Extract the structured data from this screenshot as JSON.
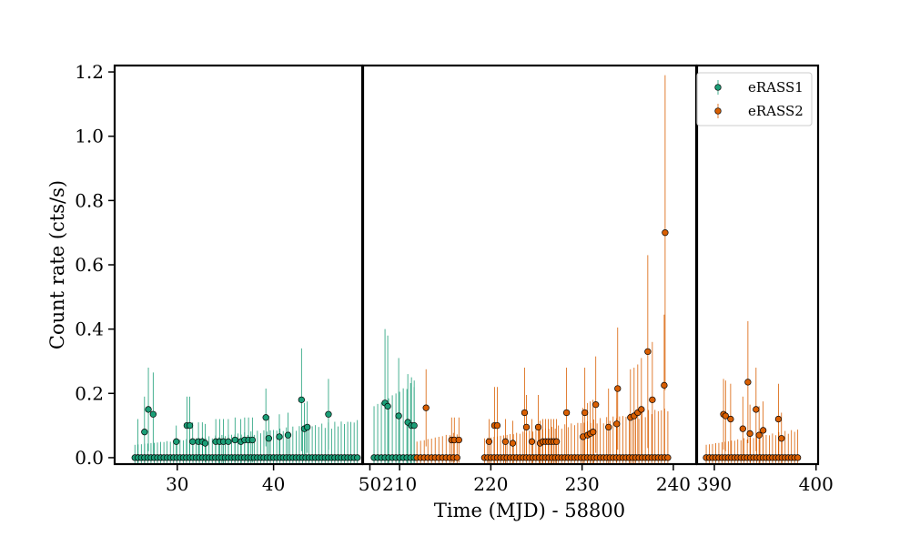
{
  "chart_data": {
    "type": "scatter",
    "title": "",
    "xlabel": "Time (MJD) - 58800",
    "ylabel": "Count rate (cts/s)",
    "ylim": [
      -0.02,
      1.22
    ],
    "yticks": [
      0.0,
      0.2,
      0.4,
      0.6,
      0.8,
      1.0,
      1.2
    ],
    "ytick_labels": [
      "0.0",
      "0.2",
      "0.4",
      "0.6",
      "0.8",
      "1.0",
      "1.2"
    ],
    "error_bars": true,
    "colors": {
      "eRASS1": "#1b9e77",
      "eRASS2": "#d95f02"
    },
    "legend": {
      "placement": "top-right",
      "entries": [
        "eRASS1",
        "eRASS2"
      ]
    },
    "panels": [
      {
        "xlim": [
          23.5,
          49.2
        ],
        "xticks": [
          30,
          40,
          50
        ],
        "xtick_labels": [
          "30",
          "40",
          "50"
        ]
      },
      {
        "xlim": [
          206,
          242.5
        ],
        "xticks": [
          210,
          220,
          230,
          240
        ],
        "xtick_labels": [
          "210",
          "220",
          "230",
          "240"
        ]
      },
      {
        "xlim": [
          388.3,
          400.2
        ],
        "xticks": [
          390,
          400
        ],
        "xtick_labels": [
          "390",
          "400"
        ]
      }
    ],
    "series": [
      {
        "name": "eRASS1",
        "points": [
          {
            "x": 25.9,
            "y": 0.0,
            "err": 0.12
          },
          {
            "x": 26.6,
            "y": 0.08,
            "err": 0.11
          },
          {
            "x": 27.0,
            "y": 0.15,
            "err": 0.13
          },
          {
            "x": 27.5,
            "y": 0.135,
            "err": 0.13
          },
          {
            "x": 29.9,
            "y": 0.05,
            "err": 0.05
          },
          {
            "x": 31.0,
            "y": 0.1,
            "err": 0.09
          },
          {
            "x": 31.3,
            "y": 0.1,
            "err": 0.09
          },
          {
            "x": 31.6,
            "y": 0.05,
            "err": 0.06
          },
          {
            "x": 32.2,
            "y": 0.05,
            "err": 0.06
          },
          {
            "x": 32.6,
            "y": 0.05,
            "err": 0.06
          },
          {
            "x": 32.9,
            "y": 0.045,
            "err": 0.06
          },
          {
            "x": 34.0,
            "y": 0.05,
            "err": 0.07
          },
          {
            "x": 34.4,
            "y": 0.05,
            "err": 0.07
          },
          {
            "x": 34.8,
            "y": 0.05,
            "err": 0.07
          },
          {
            "x": 35.3,
            "y": 0.05,
            "err": 0.07
          },
          {
            "x": 36.0,
            "y": 0.055,
            "err": 0.07
          },
          {
            "x": 36.6,
            "y": 0.05,
            "err": 0.07
          },
          {
            "x": 37.0,
            "y": 0.055,
            "err": 0.07
          },
          {
            "x": 37.4,
            "y": 0.055,
            "err": 0.07
          },
          {
            "x": 37.8,
            "y": 0.055,
            "err": 0.07
          },
          {
            "x": 39.2,
            "y": 0.125,
            "err": 0.09
          },
          {
            "x": 39.5,
            "y": 0.06,
            "err": 0.07
          },
          {
            "x": 40.6,
            "y": 0.065,
            "err": 0.07
          },
          {
            "x": 41.5,
            "y": 0.07,
            "err": 0.07
          },
          {
            "x": 42.9,
            "y": 0.18,
            "err": 0.16
          },
          {
            "x": 43.2,
            "y": 0.09,
            "err": 0.08
          },
          {
            "x": 43.5,
            "y": 0.095,
            "err": 0.08
          },
          {
            "x": 45.7,
            "y": 0.135,
            "err": 0.11
          },
          {
            "x": 208.4,
            "y": 0.17,
            "err": 0.23
          },
          {
            "x": 208.7,
            "y": 0.16,
            "err": 0.22
          },
          {
            "x": 209.9,
            "y": 0.13,
            "err": 0.18
          },
          {
            "x": 210.9,
            "y": 0.11,
            "err": 0.15
          },
          {
            "x": 211.3,
            "y": 0.1,
            "err": 0.15
          },
          {
            "x": 211.6,
            "y": 0.1,
            "err": 0.14
          }
        ],
        "zero_groups": [
          {
            "x0": 25.6,
            "x1": 48.7,
            "n": 70,
            "err0": 0.04,
            "err1": 0.12
          },
          {
            "x0": 207.2,
            "x1": 211.6,
            "n": 12,
            "err0": 0.16,
            "err1": 0.24
          }
        ]
      },
      {
        "name": "eRASS2",
        "points": [
          {
            "x": 212.9,
            "y": 0.155,
            "err": 0.12
          },
          {
            "x": 215.7,
            "y": 0.055,
            "err": 0.07
          },
          {
            "x": 216.0,
            "y": 0.055,
            "err": 0.07
          },
          {
            "x": 216.5,
            "y": 0.055,
            "err": 0.07
          },
          {
            "x": 219.8,
            "y": 0.05,
            "err": 0.07
          },
          {
            "x": 220.4,
            "y": 0.1,
            "err": 0.12
          },
          {
            "x": 220.7,
            "y": 0.1,
            "err": 0.12
          },
          {
            "x": 221.6,
            "y": 0.05,
            "err": 0.07
          },
          {
            "x": 222.4,
            "y": 0.045,
            "err": 0.07
          },
          {
            "x": 223.7,
            "y": 0.14,
            "err": 0.14
          },
          {
            "x": 223.9,
            "y": 0.095,
            "err": 0.1
          },
          {
            "x": 224.5,
            "y": 0.05,
            "err": 0.07
          },
          {
            "x": 225.2,
            "y": 0.095,
            "err": 0.1
          },
          {
            "x": 225.4,
            "y": 0.045,
            "err": 0.07
          },
          {
            "x": 225.7,
            "y": 0.05,
            "err": 0.07
          },
          {
            "x": 226.0,
            "y": 0.05,
            "err": 0.07
          },
          {
            "x": 226.3,
            "y": 0.05,
            "err": 0.07
          },
          {
            "x": 226.6,
            "y": 0.05,
            "err": 0.07
          },
          {
            "x": 226.9,
            "y": 0.05,
            "err": 0.07
          },
          {
            "x": 227.2,
            "y": 0.05,
            "err": 0.07
          },
          {
            "x": 228.3,
            "y": 0.14,
            "err": 0.14
          },
          {
            "x": 230.1,
            "y": 0.065,
            "err": 0.09
          },
          {
            "x": 230.3,
            "y": 0.14,
            "err": 0.14
          },
          {
            "x": 230.6,
            "y": 0.07,
            "err": 0.1
          },
          {
            "x": 230.9,
            "y": 0.075,
            "err": 0.1
          },
          {
            "x": 231.2,
            "y": 0.08,
            "err": 0.1
          },
          {
            "x": 231.5,
            "y": 0.165,
            "err": 0.15
          },
          {
            "x": 232.9,
            "y": 0.095,
            "err": 0.12
          },
          {
            "x": 233.8,
            "y": 0.105,
            "err": 0.12
          },
          {
            "x": 233.9,
            "y": 0.215,
            "err": 0.19
          },
          {
            "x": 235.3,
            "y": 0.125,
            "err": 0.15
          },
          {
            "x": 235.7,
            "y": 0.13,
            "err": 0.15
          },
          {
            "x": 236.1,
            "y": 0.14,
            "err": 0.15
          },
          {
            "x": 236.5,
            "y": 0.15,
            "err": 0.16
          },
          {
            "x": 237.2,
            "y": 0.33,
            "err": 0.3
          },
          {
            "x": 237.7,
            "y": 0.18,
            "err": 0.18
          },
          {
            "x": 239.0,
            "y": 0.225,
            "err": 0.22
          },
          {
            "x": 239.1,
            "y": 0.7,
            "err": 0.49
          },
          {
            "x": 390.9,
            "y": 0.135,
            "err": 0.11
          },
          {
            "x": 391.1,
            "y": 0.13,
            "err": 0.11
          },
          {
            "x": 391.6,
            "y": 0.12,
            "err": 0.11
          },
          {
            "x": 392.8,
            "y": 0.09,
            "err": 0.1
          },
          {
            "x": 393.3,
            "y": 0.235,
            "err": 0.19
          },
          {
            "x": 393.5,
            "y": 0.075,
            "err": 0.09
          },
          {
            "x": 394.1,
            "y": 0.15,
            "err": 0.13
          },
          {
            "x": 394.4,
            "y": 0.07,
            "err": 0.09
          },
          {
            "x": 394.8,
            "y": 0.085,
            "err": 0.09
          },
          {
            "x": 396.3,
            "y": 0.12,
            "err": 0.11
          },
          {
            "x": 396.6,
            "y": 0.06,
            "err": 0.08
          }
        ],
        "zero_groups": [
          {
            "x0": 211.9,
            "x1": 216.3,
            "n": 12,
            "err0": 0.05,
            "err1": 0.08
          },
          {
            "x0": 219.3,
            "x1": 239.4,
            "n": 58,
            "err0": 0.06,
            "err1": 0.16
          },
          {
            "x0": 389.2,
            "x1": 398.2,
            "n": 30,
            "err0": 0.04,
            "err1": 0.09
          }
        ]
      }
    ]
  }
}
